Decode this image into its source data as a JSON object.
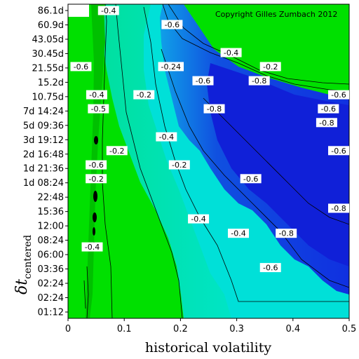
{
  "chart_data": {
    "type": "heatmap",
    "subtype": "filled contour",
    "title": "",
    "credit": "Copyright Gilles Zumbach 2012",
    "xlabel": "historical volatility",
    "ylabel_main": "δt",
    "ylabel_sub": "centered",
    "xlim": [
      0,
      0.5
    ],
    "x_ticks": [
      "0",
      "0.1",
      "0.2",
      "0.3",
      "0.4",
      "0.5"
    ],
    "y_ticks": [
      "86.1d",
      "60.9d",
      "43.05d",
      "30.45d",
      "21.55d",
      "15.2d",
      "10.75d",
      "7d 14:24",
      "5d 09:36",
      "3d 19:12",
      "2d 16:48",
      "1d 21:36",
      "1d 08:24",
      "22:48",
      "15:36",
      "12:00",
      "08:24",
      "06:00",
      "03:36",
      "02:24",
      "02:24",
      "01:12"
    ],
    "grid": false,
    "legend": "none",
    "colors": {
      "high": "#00e000",
      "mid": "#00e0c0",
      "low": "#1030e0",
      "contour_line": "#000000"
    },
    "contour_labels": [
      {
        "text": "-0.4",
        "x": 0.072,
        "y": 86.1
      },
      {
        "text": "-0.6",
        "x": 0.185,
        "y": 60.9
      },
      {
        "text": "-0.4",
        "x": 0.29,
        "y": 30.45
      },
      {
        "text": "-0.24",
        "x": 0.183,
        "y": 21.55
      },
      {
        "text": "-0.2",
        "x": 0.36,
        "y": 21.55
      },
      {
        "text": "-0.6",
        "x": 0.023,
        "y": 21.55
      },
      {
        "text": "-0.6",
        "x": 0.24,
        "y": 15.2
      },
      {
        "text": "-0.8",
        "x": 0.34,
        "y": 15.2
      },
      {
        "text": "-0.4",
        "x": 0.051,
        "y": 10.75
      },
      {
        "text": "-0.2",
        "x": 0.135,
        "y": 10.75
      },
      {
        "text": "-0.6",
        "x": 0.487,
        "y": 10.75
      },
      {
        "text": "-0.8",
        "x": 0.26,
        "y": 7.6
      },
      {
        "text": "-0.5",
        "x": 0.054,
        "y": 7.6
      },
      {
        "text": "-0.6",
        "x": 0.463,
        "y": 7.6
      },
      {
        "text": "-0.8",
        "x": 0.46,
        "y": 5.4
      },
      {
        "text": "-0.4",
        "x": 0.175,
        "y": 3.8
      },
      {
        "text": "-0.2",
        "x": 0.087,
        "y": 2.7
      },
      {
        "text": "-0.6",
        "x": 0.482,
        "y": 2.7
      },
      {
        "text": "-0.6",
        "x": 0.05,
        "y": 1.9
      },
      {
        "text": "-0.2",
        "x": 0.198,
        "y": 1.9
      },
      {
        "text": "-0.6",
        "x": 0.325,
        "y": 1.35
      },
      {
        "text": "-0.2",
        "x": 0.05,
        "y": 1.35
      },
      {
        "text": "-0.8",
        "x": 0.5,
        "y": 0.65
      },
      {
        "text": "-0.4",
        "x": 0.232,
        "y": 0.5
      },
      {
        "text": "-0.4",
        "x": 0.303,
        "y": 0.35
      },
      {
        "text": "-0.8",
        "x": 0.388,
        "y": 0.35
      },
      {
        "text": "-0.4",
        "x": 0.043,
        "y": 0.25
      },
      {
        "text": "-0.6",
        "x": 0.36,
        "y": 0.15
      }
    ]
  }
}
